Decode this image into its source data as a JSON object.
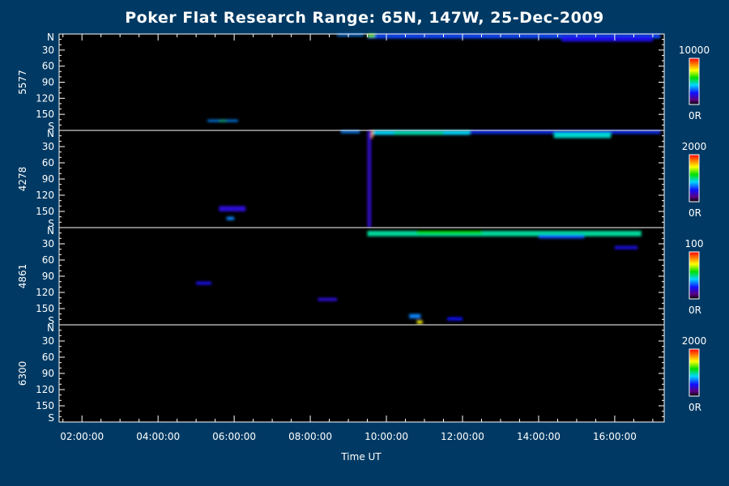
{
  "chart_data": {
    "type": "heatmap",
    "title": "Poker Flat Research Range: 65N, 147W, 25-Dec-2009",
    "xlabel": "Time UT",
    "xticks": [
      "02:00:00",
      "04:00:00",
      "06:00:00",
      "08:00:00",
      "10:00:00",
      "12:00:00",
      "14:00:00",
      "16:00:00"
    ],
    "xlim_hours": [
      1.4,
      17.3
    ],
    "y_ticks": [
      "N",
      "30",
      "60",
      "90",
      "120",
      "150",
      "S"
    ],
    "y_values": [
      0,
      30,
      60,
      90,
      120,
      150,
      180
    ],
    "colormap": "rainbow (black-purple-blue-cyan-green-yellow-orange-red)",
    "panels": [
      {
        "name": "5577",
        "cb_max": "10000",
        "cb_min": "0R",
        "features": [
          {
            "t0": 8.7,
            "t1": 9.4,
            "a0": 0,
            "a1": 4,
            "i": 0.35
          },
          {
            "t0": 9.5,
            "t1": 17.2,
            "a0": 0,
            "a1": 8,
            "i": 0.3
          },
          {
            "t0": 9.5,
            "t1": 9.7,
            "a0": 0,
            "a1": 6,
            "i": 0.65
          },
          {
            "t0": 14.6,
            "t1": 17.0,
            "a0": 4,
            "a1": 14,
            "i": 0.22
          },
          {
            "t0": 5.3,
            "t1": 6.1,
            "a0": 160,
            "a1": 164,
            "i": 0.35
          },
          {
            "t0": 5.6,
            "t1": 5.8,
            "a0": 161,
            "a1": 163,
            "i": 0.6
          }
        ]
      },
      {
        "name": "4278",
        "cb_max": "2000",
        "cb_min": "0R",
        "features": [
          {
            "t0": 8.8,
            "t1": 9.3,
            "a0": 0,
            "a1": 5,
            "i": 0.35
          },
          {
            "t0": 9.5,
            "t1": 12.2,
            "a0": 0,
            "a1": 8,
            "i": 0.42
          },
          {
            "t0": 9.5,
            "t1": 9.65,
            "a0": 0,
            "a1": 14,
            "i": 0.85
          },
          {
            "t0": 10.2,
            "t1": 11.5,
            "a0": 2,
            "a1": 8,
            "i": 0.48
          },
          {
            "t0": 12.2,
            "t1": 17.2,
            "a0": 0,
            "a1": 6,
            "i": 0.28
          },
          {
            "t0": 14.4,
            "t1": 15.9,
            "a0": 4,
            "a1": 14,
            "i": 0.45
          },
          {
            "t0": 9.5,
            "t1": 9.6,
            "a0": 0,
            "a1": 180,
            "i": 0.18
          },
          {
            "t0": 5.6,
            "t1": 6.3,
            "a0": 140,
            "a1": 150,
            "i": 0.2
          },
          {
            "t0": 5.8,
            "t1": 6.0,
            "a0": 160,
            "a1": 166,
            "i": 0.35
          }
        ]
      },
      {
        "name": "4861",
        "cb_max": "100",
        "cb_min": "0R",
        "features": [
          {
            "t0": 9.5,
            "t1": 16.7,
            "a0": 6,
            "a1": 16,
            "i": 0.48
          },
          {
            "t0": 10.8,
            "t1": 12.5,
            "a0": 6,
            "a1": 12,
            "i": 0.58
          },
          {
            "t0": 14.0,
            "t1": 15.2,
            "a0": 14,
            "a1": 20,
            "i": 0.3
          },
          {
            "t0": 16.0,
            "t1": 16.6,
            "a0": 34,
            "a1": 40,
            "i": 0.22
          },
          {
            "t0": 10.6,
            "t1": 10.9,
            "a0": 160,
            "a1": 168,
            "i": 0.35
          },
          {
            "t0": 10.8,
            "t1": 10.95,
            "a0": 172,
            "a1": 178,
            "i": 0.75
          },
          {
            "t0": 11.6,
            "t1": 12.0,
            "a0": 166,
            "a1": 172,
            "i": 0.25
          },
          {
            "t0": 8.2,
            "t1": 8.7,
            "a0": 130,
            "a1": 136,
            "i": 0.2
          },
          {
            "t0": 5.0,
            "t1": 5.4,
            "a0": 100,
            "a1": 106,
            "i": 0.22
          }
        ]
      },
      {
        "name": "6300",
        "cb_max": "2000",
        "cb_min": "0R",
        "features": []
      }
    ]
  }
}
